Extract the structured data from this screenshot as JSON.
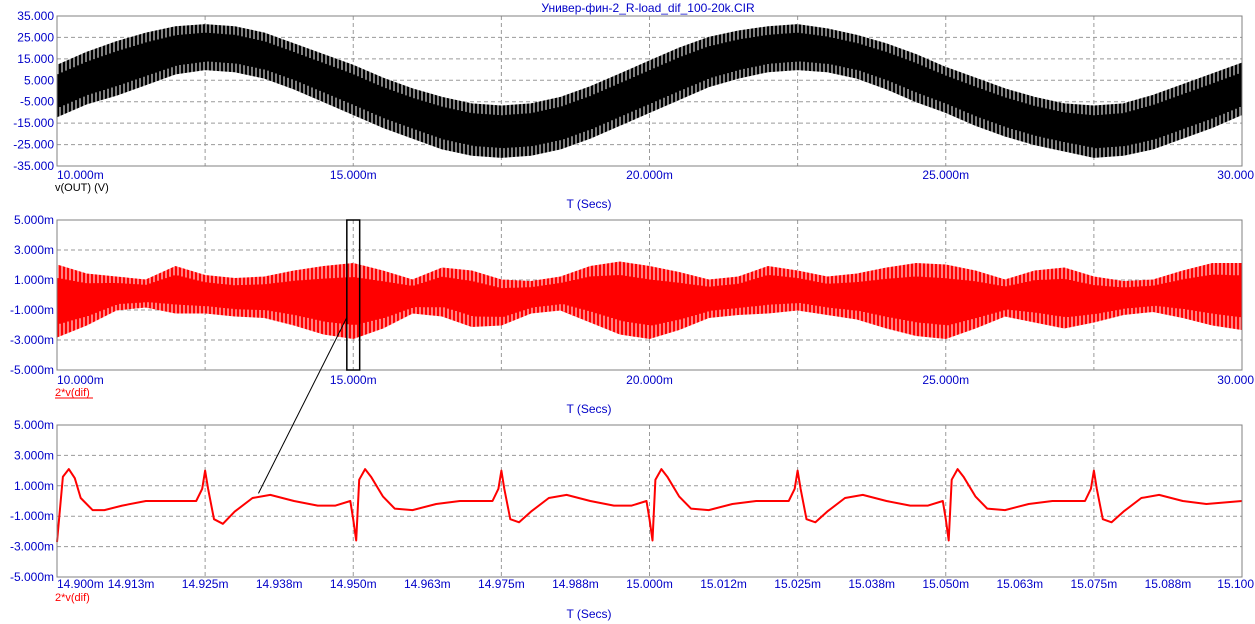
{
  "window_title": "Универ-фин-2_R-load_dif_100-20k.CIR",
  "colors": {
    "trace_out": "#000000",
    "trace_dif": "#ff0000",
    "text_axis": "#0000c8",
    "grid": "#9a9a9a"
  },
  "chart_data": [
    {
      "type": "line",
      "xlabel": "T (Secs)",
      "ylabel": "",
      "series": [
        {
          "name": "v(OUT) (V)",
          "color": "#000000"
        }
      ],
      "xlim": [
        10.0,
        30.0
      ],
      "ylim": [
        -35.0,
        35.0
      ],
      "x_unit": "ms",
      "y_ticks": [
        "35.000",
        "25.000",
        "15.000",
        "5.000",
        "-5.000",
        "-15.000",
        "-25.000",
        "-35.000"
      ],
      "y_tick_values": [
        35,
        25,
        15,
        5,
        -5,
        -15,
        -25,
        -35
      ],
      "x_ticks": [
        "10.000m",
        "15.000m",
        "20.000m",
        "25.000m",
        "30.000"
      ],
      "x_tick_values": [
        10,
        15,
        20,
        25,
        30
      ],
      "x_grid_values": [
        12.5,
        15,
        17.5,
        20,
        22.5,
        25,
        27.5
      ],
      "envelope": {
        "x": [
          10.0,
          10.5,
          11.0,
          11.5,
          12.0,
          12.5,
          13.0,
          13.5,
          14.0,
          14.5,
          15.0,
          15.5,
          16.0,
          16.5,
          17.0,
          17.5,
          18.0,
          18.5,
          19.0,
          19.5,
          20.0,
          20.5,
          21.0,
          21.5,
          22.0,
          22.5,
          23.0,
          23.5,
          24.0,
          24.5,
          25.0,
          25.5,
          26.0,
          26.5,
          27.0,
          27.5,
          28.0,
          28.5,
          29.0,
          29.5,
          30.0
        ],
        "upper": [
          12,
          18,
          23,
          27,
          30,
          31,
          30,
          27,
          22,
          17,
          12,
          6,
          1,
          -3,
          -6,
          -7,
          -6,
          -3,
          2,
          8,
          14,
          20,
          25,
          28,
          30,
          31,
          29,
          26,
          22,
          17,
          11,
          6,
          1,
          -3,
          -6,
          -7,
          -6,
          -2,
          3,
          8,
          13
        ],
        "lower": [
          -12,
          -6,
          -2,
          3,
          8,
          10,
          9,
          6,
          1,
          -5,
          -11,
          -17,
          -22,
          -27,
          -30,
          -31,
          -30,
          -27,
          -22,
          -16,
          -10,
          -4,
          2,
          6,
          9,
          10,
          9,
          6,
          1,
          -5,
          -10,
          -16,
          -21,
          -25,
          -28,
          -31,
          -30,
          -27,
          -22,
          -17,
          -11
        ]
      }
    },
    {
      "type": "line",
      "xlabel": "T (Secs)",
      "ylabel": "",
      "series": [
        {
          "name": "2*v(dif)",
          "color": "#ff0000"
        }
      ],
      "xlim": [
        10.0,
        30.0
      ],
      "ylim": [
        -5.0,
        5.0
      ],
      "x_unit": "ms",
      "y_ticks": [
        "5.000m",
        "3.000m",
        "1.000m",
        "-1.000m",
        "-3.000m",
        "-5.000m"
      ],
      "y_tick_values": [
        5,
        3,
        1,
        -1,
        -3,
        -5
      ],
      "x_ticks": [
        "10.000m",
        "15.000m",
        "20.000m",
        "25.000m",
        "30.000"
      ],
      "x_tick_values": [
        10,
        15,
        20,
        25,
        30
      ],
      "x_grid_values": [
        12.5,
        15,
        17.5,
        20,
        22.5,
        25,
        27.5
      ],
      "zoom_box": {
        "x0": 14.9,
        "x1": 15.1
      },
      "envelope": {
        "x": [
          10.0,
          10.5,
          11.0,
          11.5,
          12.0,
          12.5,
          13.0,
          13.5,
          14.0,
          14.5,
          15.0,
          15.5,
          16.0,
          16.5,
          17.0,
          17.5,
          18.0,
          18.5,
          19.0,
          19.5,
          20.0,
          20.5,
          21.0,
          21.5,
          22.0,
          22.5,
          23.0,
          23.5,
          24.0,
          24.5,
          25.0,
          25.5,
          26.0,
          26.5,
          27.0,
          27.5,
          28.0,
          28.5,
          29.0,
          29.5,
          30.0
        ],
        "upper": [
          2.0,
          1.4,
          1.2,
          1.0,
          1.9,
          1.3,
          1.1,
          1.2,
          1.6,
          1.9,
          2.1,
          1.6,
          1.0,
          1.8,
          1.6,
          1.0,
          0.9,
          1.2,
          1.9,
          2.2,
          1.9,
          1.5,
          1.0,
          1.2,
          1.9,
          1.6,
          1.2,
          1.4,
          1.8,
          2.1,
          2.0,
          1.6,
          1.0,
          1.6,
          1.8,
          1.2,
          0.9,
          1.0,
          1.6,
          2.1,
          2.1
        ],
        "lower": [
          -2.8,
          -2.0,
          -1.0,
          -0.8,
          -1.2,
          -1.2,
          -1.4,
          -1.5,
          -2.0,
          -2.6,
          -2.9,
          -2.2,
          -1.2,
          -1.4,
          -2.1,
          -2.0,
          -1.2,
          -1.0,
          -1.8,
          -2.6,
          -2.9,
          -2.3,
          -1.5,
          -1.3,
          -1.2,
          -1.0,
          -1.3,
          -1.6,
          -2.2,
          -2.7,
          -2.9,
          -2.2,
          -1.4,
          -1.8,
          -2.2,
          -1.8,
          -1.3,
          -1.1,
          -1.5,
          -2.0,
          -2.3
        ]
      }
    },
    {
      "type": "line",
      "xlabel": "T (Secs)",
      "ylabel": "",
      "series": [
        {
          "name": "2*v(dif)",
          "color": "#ff0000",
          "x": [
            14.9,
            14.901,
            14.902,
            14.903,
            14.904,
            14.906,
            14.908,
            14.911,
            14.915,
            14.92,
            14.9235,
            14.9245,
            14.925,
            14.9255,
            14.9265,
            14.928,
            14.93,
            14.933,
            14.936,
            14.94,
            14.944,
            14.947,
            14.9495,
            14.95,
            14.9505,
            14.951,
            14.952,
            14.953,
            14.955,
            14.957,
            14.96,
            14.964,
            14.968,
            14.972,
            14.9735,
            14.9745,
            14.975,
            14.9755,
            14.9765,
            14.978,
            14.98,
            14.983,
            14.986,
            14.99,
            14.994,
            14.997,
            14.9995,
            15.0,
            15.0005,
            15.001,
            15.002,
            15.003,
            15.005,
            15.007,
            15.01,
            15.014,
            15.018,
            15.022,
            15.0235,
            15.0245,
            15.025,
            15.0255,
            15.0265,
            15.028,
            15.03,
            15.033,
            15.036,
            15.04,
            15.044,
            15.047,
            15.0495,
            15.05,
            15.0505,
            15.051,
            15.052,
            15.053,
            15.055,
            15.057,
            15.06,
            15.064,
            15.068,
            15.072,
            15.0735,
            15.0745,
            15.075,
            15.0755,
            15.0765,
            15.078,
            15.08,
            15.083,
            15.086,
            15.09,
            15.094,
            15.097,
            15.1
          ],
          "y": [
            -2.7,
            1.6,
            2.1,
            1.5,
            0.2,
            -0.6,
            -0.6,
            -0.3,
            0.0,
            0.0,
            0.0,
            0.8,
            2.0,
            0.8,
            -1.2,
            -1.5,
            -0.7,
            0.2,
            0.4,
            0.0,
            -0.3,
            -0.3,
            0.0,
            -1.2,
            -2.6,
            1.4,
            2.1,
            1.6,
            0.3,
            -0.5,
            -0.6,
            -0.2,
            0.0,
            0.0,
            0.0,
            0.8,
            2.0,
            0.8,
            -1.2,
            -1.4,
            -0.7,
            0.2,
            0.4,
            0.0,
            -0.3,
            -0.3,
            0.0,
            -1.2,
            -2.6,
            1.4,
            2.1,
            1.6,
            0.3,
            -0.5,
            -0.6,
            -0.2,
            0.0,
            0.0,
            0.0,
            0.8,
            2.0,
            0.8,
            -1.2,
            -1.4,
            -0.7,
            0.2,
            0.4,
            0.0,
            -0.3,
            -0.3,
            0.0,
            -1.2,
            -2.6,
            1.4,
            2.1,
            1.6,
            0.3,
            -0.5,
            -0.6,
            -0.2,
            0.0,
            0.0,
            0.0,
            0.8,
            2.0,
            0.8,
            -1.2,
            -1.4,
            -0.7,
            0.2,
            0.4,
            0.0,
            -0.2,
            -0.1,
            0.0
          ]
        }
      ],
      "xlim": [
        14.9,
        15.1
      ],
      "ylim": [
        -5.0,
        5.0
      ],
      "x_unit": "ms",
      "y_ticks": [
        "5.000m",
        "3.000m",
        "1.000m",
        "-1.000m",
        "-3.000m",
        "-5.000m"
      ],
      "y_tick_values": [
        5,
        3,
        1,
        -1,
        -3,
        -5
      ],
      "x_ticks": [
        "14.900m",
        "14.913m",
        "14.925m",
        "14.938m",
        "14.950m",
        "14.963m",
        "14.975m",
        "14.988m",
        "15.000m",
        "15.012m",
        "15.025m",
        "15.038m",
        "15.050m",
        "15.063m",
        "15.075m",
        "15.088m",
        "15.100"
      ],
      "x_tick_values": [
        14.9,
        14.9125,
        14.925,
        14.9375,
        14.95,
        14.9625,
        14.975,
        14.9875,
        15.0,
        15.0125,
        15.025,
        15.0375,
        15.05,
        15.0625,
        15.075,
        15.0875,
        15.1
      ],
      "x_grid_values": [
        14.925,
        14.95,
        14.975,
        15.0,
        15.025,
        15.05,
        15.075
      ],
      "callout_point": {
        "x": 14.934,
        "y": 0.5
      }
    }
  ]
}
